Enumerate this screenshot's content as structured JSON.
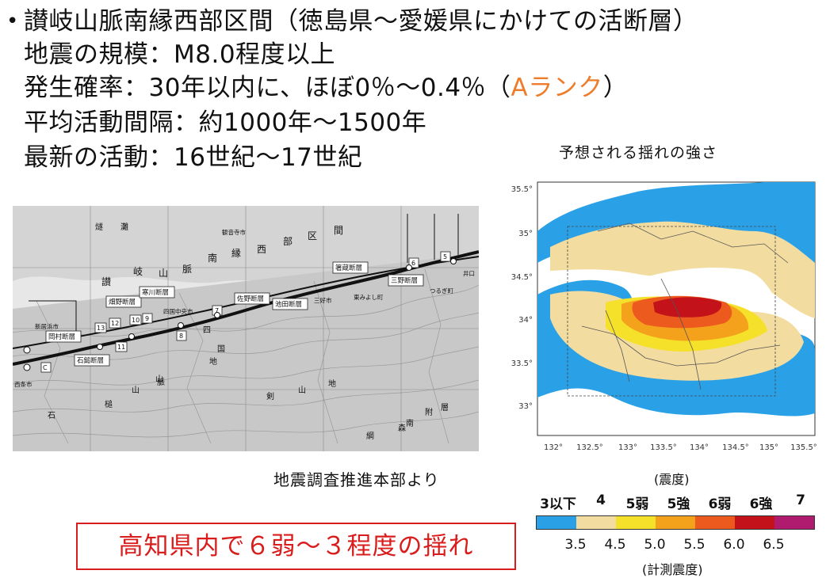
{
  "slide": {
    "bullet": "•",
    "title_line": "讃岐山脈南縁西部区間（徳島県～愛媛県にかけての活断層）",
    "magnitude": "地震の規模：M8.0程度以上",
    "probability_prefix": "発生確率：30年以内に、ほぼ0％～0.4％（",
    "probability_rank": "Aランク",
    "probability_suffix": "）",
    "interval": "平均活動間隔：約1000年～1500年",
    "latest": "最新の活動：16世紀～17世紀",
    "shaking_caption": "予想される揺れの強さ",
    "source": "地震調査推進本部より",
    "highlight": "高知県内で６弱～３程度の揺れ"
  },
  "fault_map": {
    "region_labels": [
      "讃",
      "岐",
      "山",
      "脈",
      "南",
      "縁",
      "西",
      "部",
      "区",
      "間"
    ],
    "sea_labels": [
      "燧",
      "灘"
    ],
    "mountain_labels": [
      "四",
      "国",
      "山",
      "地"
    ],
    "lower_labels": [
      "石",
      "槌",
      "山",
      "脈",
      "剣",
      "山",
      "地",
      "南",
      "森",
      "附",
      "層",
      "綱"
    ],
    "fault_names": [
      "岡村断層",
      "石鎚断層",
      "畑野断層",
      "寒川断層",
      "佐野断層",
      "池田断層",
      "三野断層",
      "箸蔵断層"
    ],
    "place_names": [
      "新居浜市",
      "西条市",
      "四国中央市",
      "三好市",
      "東みよし町",
      "つるぎ町",
      "観音寺市",
      "井口"
    ],
    "segment_numbers": [
      "13",
      "12",
      "11",
      "10",
      "9",
      "8",
      "7",
      "6",
      "5",
      "C"
    ]
  },
  "intensity_map": {
    "y_ticks": [
      "35.5°",
      "35°",
      "34.5°",
      "34°",
      "33.5°",
      "33°"
    ],
    "x_ticks": [
      "132°",
      "132.5°",
      "133°",
      "133.5°",
      "134°",
      "134.5°",
      "135°",
      "135.5°"
    ]
  },
  "legend": {
    "title": "(震度)",
    "labels": [
      "3以下",
      "4",
      "5弱",
      "5強",
      "6弱",
      "6強",
      "7"
    ],
    "colors": [
      "#2aa1e6",
      "#f3dca0",
      "#f5e02a",
      "#f4a11b",
      "#ec5a1e",
      "#c3121a",
      "#b01a6f"
    ],
    "ticks": [
      "3.5",
      "4.5",
      "5.0",
      "5.5",
      "6.0",
      "6.5"
    ],
    "unit": "(計測震度)"
  }
}
